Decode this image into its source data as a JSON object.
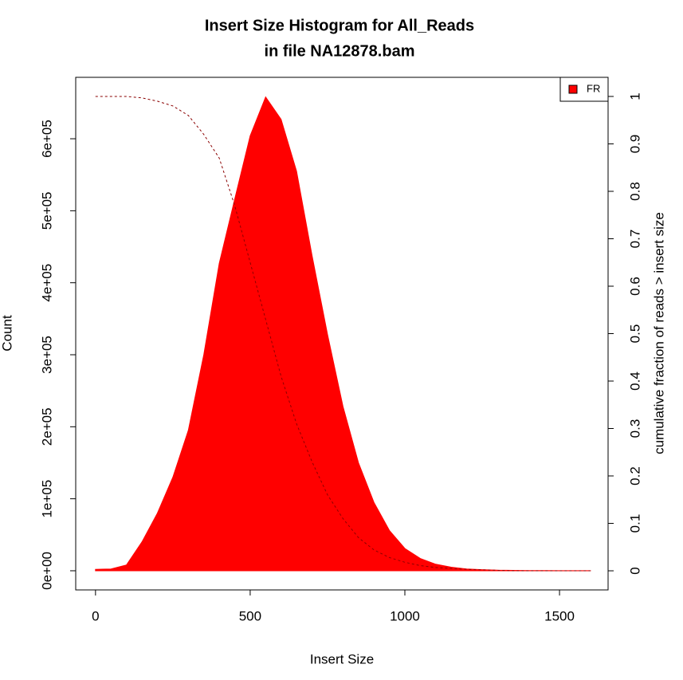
{
  "chart_data": {
    "type": "histogram-cumulative",
    "title": "Insert Size Histogram for All_Reads",
    "subtitle": "in file NA12878.bam",
    "x_label": "Insert Size",
    "y_label": "Count",
    "y2_label": "cumulative fraction of reads > insert size",
    "x": [
      0,
      50,
      100,
      150,
      200,
      250,
      300,
      350,
      400,
      450,
      500,
      550,
      600,
      650,
      700,
      750,
      800,
      850,
      900,
      950,
      1000,
      1050,
      1100,
      1150,
      1200,
      1250,
      1300,
      1350,
      1400,
      1450,
      1500,
      1550,
      1600
    ],
    "series": [
      {
        "name": "FR",
        "color": "#ff0000",
        "values": [
          2000,
          2500,
          8000,
          40000,
          80000,
          130000,
          195000,
          300000,
          427000,
          516000,
          604000,
          658000,
          627000,
          555000,
          438000,
          328000,
          228000,
          150000,
          95000,
          56000,
          31000,
          17000,
          9000,
          5000,
          2500,
          1500,
          800,
          500,
          300,
          200,
          100,
          70,
          50
        ]
      },
      {
        "color": "#8b0000",
        "axis": "y2",
        "dashed": true,
        "values": [
          1,
          1,
          1,
          0.997,
          0.99,
          0.98,
          0.96,
          0.92,
          0.87,
          0.77,
          0.65,
          0.53,
          0.41,
          0.31,
          0.23,
          0.16,
          0.11,
          0.07,
          0.044,
          0.028,
          0.018,
          0.011,
          0.007,
          0.005,
          0.003,
          0.002,
          0.001,
          0,
          0,
          0,
          0,
          0,
          0
        ]
      }
    ],
    "xlim": [
      -64,
      1657
    ],
    "xticks": [
      0,
      500,
      1000,
      1500
    ],
    "ylim": [
      -26600,
      685300
    ],
    "yticks": [
      {
        "value": 0,
        "label": "0e+00"
      },
      {
        "value": 100000,
        "label": "1e+05"
      },
      {
        "value": 200000,
        "label": "2e+05"
      },
      {
        "value": 300000,
        "label": "3e+05"
      },
      {
        "value": 400000,
        "label": "4e+05"
      },
      {
        "value": 500000,
        "label": "5e+05"
      },
      {
        "value": 600000,
        "label": "6e+05"
      }
    ],
    "y2lim": [
      -0.0403,
      1.0403
    ],
    "y2ticks": [
      0,
      0.1,
      0.2,
      0.3,
      0.4,
      0.5,
      0.6,
      0.7,
      0.8,
      0.9,
      1
    ],
    "legend": "top-right"
  }
}
